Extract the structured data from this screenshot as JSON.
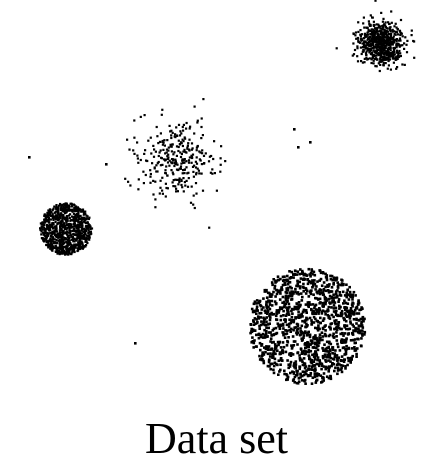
{
  "caption": "Data set",
  "colors": {
    "background": "#ffffff",
    "points": "#000000"
  },
  "figure": {
    "clusters": [
      {
        "id": "top-right-dense",
        "shape": "gaussian",
        "density": "very-dense"
      },
      {
        "id": "upper-middle-sparse",
        "shape": "gaussian",
        "density": "sparse"
      },
      {
        "id": "left-small-disk",
        "shape": "uniform-disk",
        "density": "very-dense"
      },
      {
        "id": "bottom-right-large-disk",
        "shape": "uniform-disk",
        "density": "medium"
      }
    ],
    "outliers": 6
  }
}
